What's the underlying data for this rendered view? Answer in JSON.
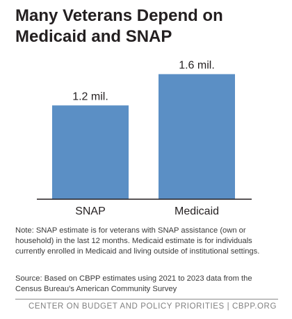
{
  "title": "Many Veterans Depend on Medicaid and SNAP",
  "chart_data": {
    "type": "bar",
    "categories": [
      "SNAP",
      "Medicaid"
    ],
    "values": [
      1.2,
      1.6
    ],
    "value_labels": [
      "1.2 mil.",
      "1.6 mil."
    ],
    "unit": "mil.",
    "ylim": [
      0,
      1.8
    ],
    "grid": false,
    "bar_color": "#5b8fc5"
  },
  "notes": {
    "note": "Note: SNAP estimate is for veterans with SNAP assistance (own or household) in the last 12 months. Medicaid estimate is for individuals currently enrolled in Medicaid and living outside of institutional settings.",
    "source": "Source: Based on CBPP estimates using 2021 to 2023 data from the Census Bureau's American Community Survey"
  },
  "footer": "CENTER ON BUDGET AND POLICY PRIORITIES | CBPP.ORG"
}
